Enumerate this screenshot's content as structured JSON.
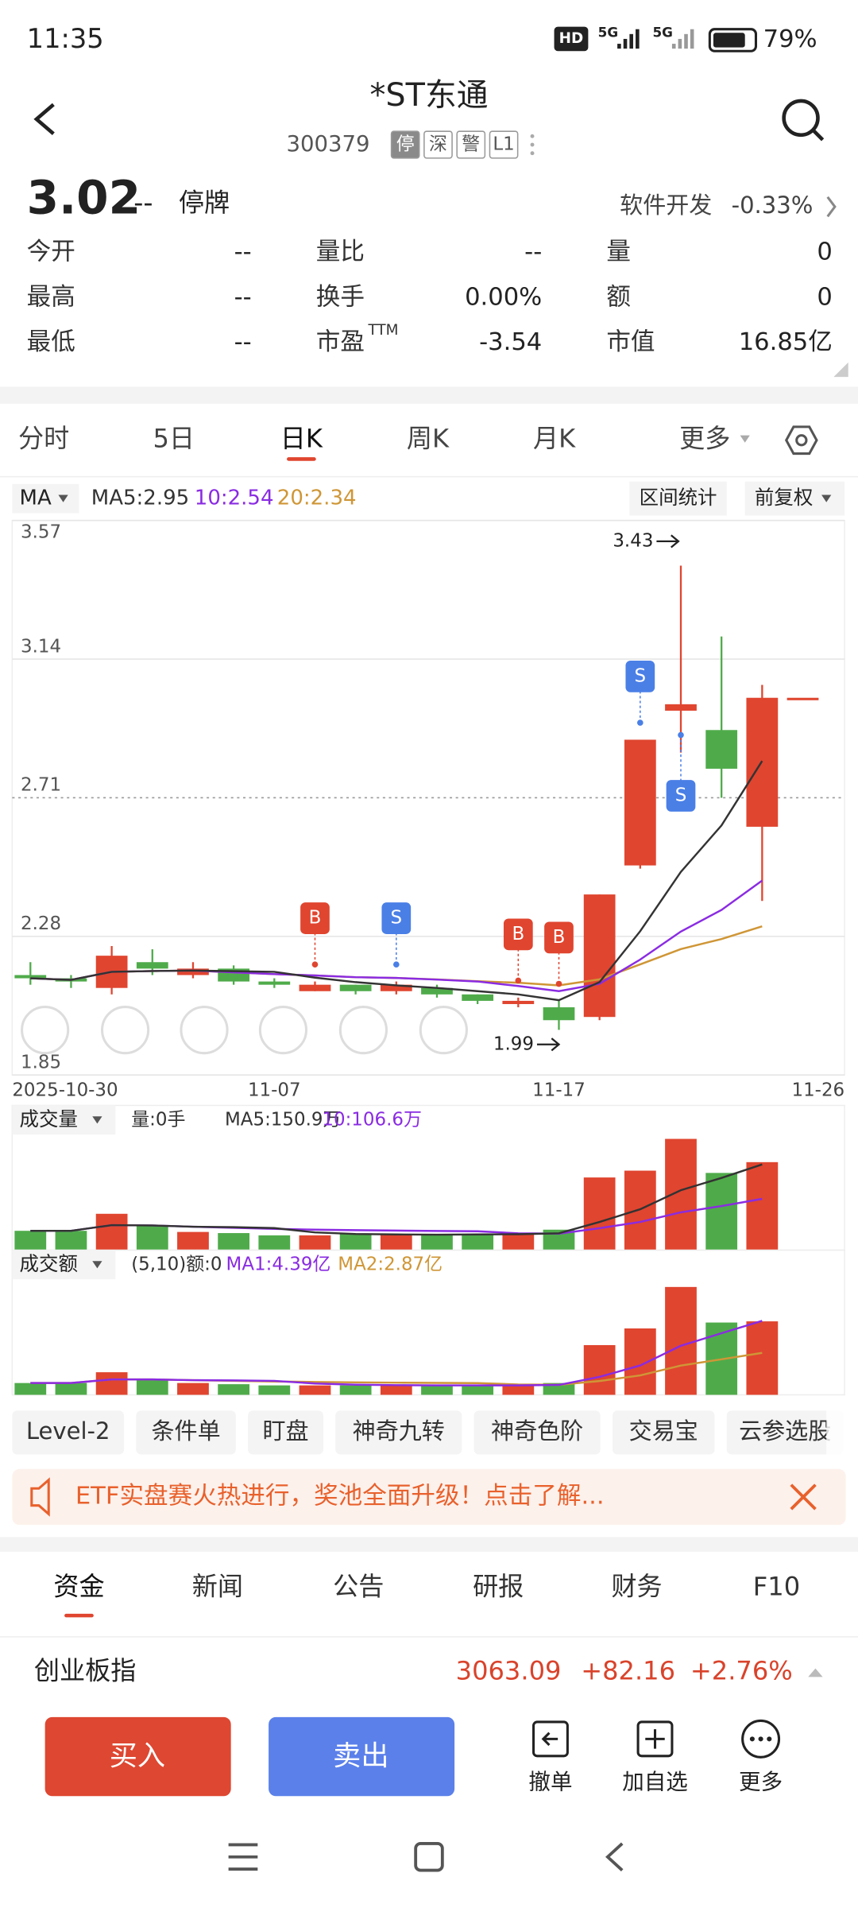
{
  "status": {
    "time": "11:35",
    "hd": "HD",
    "net1": "5G",
    "net2": "5G",
    "battery": "79%"
  },
  "header": {
    "title": "*ST东通",
    "code": "300379",
    "tags": [
      "停",
      "深",
      "警",
      "L1"
    ]
  },
  "quote": {
    "price": "3.02",
    "change": "--",
    "state": "停牌",
    "sector": "软件开发",
    "sector_change": "-0.33%"
  },
  "stats": [
    {
      "label": "今开",
      "value": "--"
    },
    {
      "label": "量比",
      "value": "--"
    },
    {
      "label": "量",
      "value": "0"
    },
    {
      "label": "最高",
      "value": "--"
    },
    {
      "label": "换手",
      "value": "0.00%"
    },
    {
      "label": "额",
      "value": "0"
    },
    {
      "label": "最低",
      "value": "--"
    },
    {
      "label": "市盈",
      "sup": "TTM",
      "value": "-3.54"
    },
    {
      "label": "市值",
      "value": "16.85亿"
    }
  ],
  "tabs": [
    "分时",
    "5日",
    "日K",
    "周K",
    "月K",
    "更多"
  ],
  "kline": {
    "type": "candlestick",
    "ma_button": "MA",
    "ma5": "MA5:2.95",
    "ma10": "10:2.54",
    "ma20": "20:2.34",
    "buttons": [
      "区间统计",
      "前复权"
    ],
    "categories": [
      "2025-10-30",
      null,
      null,
      null,
      null,
      null,
      "11-07",
      null,
      null,
      null,
      null,
      null,
      null,
      "11-17",
      null,
      null,
      null,
      null,
      null,
      "11-26"
    ],
    "open": [
      2.16,
      2.15,
      2.12,
      2.2,
      2.16,
      2.18,
      2.14,
      2.11,
      2.13,
      2.11,
      2.12,
      2.1,
      2.07,
      2.06,
      2.03,
      2.5,
      2.98,
      2.92,
      2.62,
      3.02
    ],
    "high": [
      2.2,
      2.16,
      2.25,
      2.24,
      2.2,
      2.19,
      2.15,
      2.14,
      2.13,
      2.14,
      2.13,
      2.1,
      2.09,
      2.08,
      2.41,
      2.89,
      3.43,
      3.21,
      3.06,
      3.02
    ],
    "low": [
      2.13,
      2.12,
      2.1,
      2.16,
      2.15,
      2.13,
      2.12,
      2.11,
      2.1,
      2.1,
      2.09,
      2.07,
      2.06,
      1.99,
      2.02,
      2.49,
      2.85,
      2.71,
      2.39,
      3.02
    ],
    "close": [
      2.15,
      2.14,
      2.22,
      2.18,
      2.18,
      2.14,
      2.13,
      2.13,
      2.11,
      2.13,
      2.1,
      2.08,
      2.08,
      2.02,
      2.41,
      2.89,
      3.0,
      2.8,
      3.02,
      3.02
    ],
    "signals": [
      null,
      null,
      null,
      null,
      null,
      null,
      null,
      "B",
      null,
      "S",
      null,
      null,
      "B",
      "B",
      null,
      "S",
      "S",
      null,
      null,
      null
    ],
    "max_label": "3.43",
    "min_label": "1.99",
    "ylim": [
      1.85,
      3.57
    ],
    "yticks": [
      3.57,
      3.14,
      2.71,
      2.28,
      1.85
    ]
  },
  "volume": {
    "title": "成交量",
    "info": "量:0手",
    "ma5": "MA5:150.9万",
    "ma10": "10:106.6万",
    "values": [
      34,
      34,
      64,
      42,
      32,
      30,
      26,
      26,
      28,
      28,
      28,
      28,
      28,
      36,
      128,
      140,
      196,
      136,
      155,
      0
    ],
    "ylim": [
      0,
      210
    ]
  },
  "amount": {
    "title": "成交额",
    "info": "(5,10)额:0",
    "ma1": "MA1:4.39亿",
    "ma2": "MA2:2.87亿",
    "values": [
      0.7,
      0.7,
      1.34,
      0.91,
      0.7,
      0.63,
      0.56,
      0.56,
      0.56,
      0.56,
      0.56,
      0.56,
      0.56,
      0.7,
      2.95,
      3.94,
      6.4,
      4.29,
      4.36,
      0
    ],
    "ylim": [
      0,
      7
    ]
  },
  "tools": [
    "Level-2",
    "条件单",
    "盯盘",
    "神奇九转",
    "神奇色阶",
    "交易宝",
    "云参选股"
  ],
  "banner": "ETF实盘赛火热进行，奖池全面升级！点击了解...",
  "sections": [
    "资金",
    "新闻",
    "公告",
    "研报",
    "财务",
    "F10"
  ],
  "index": {
    "name": "创业板指",
    "value": "3063.09",
    "change": "+82.16",
    "pct": "+2.76%"
  },
  "actions": {
    "buy": "买入",
    "sell": "卖出",
    "items": [
      "撤单",
      "加自选",
      "更多"
    ]
  }
}
